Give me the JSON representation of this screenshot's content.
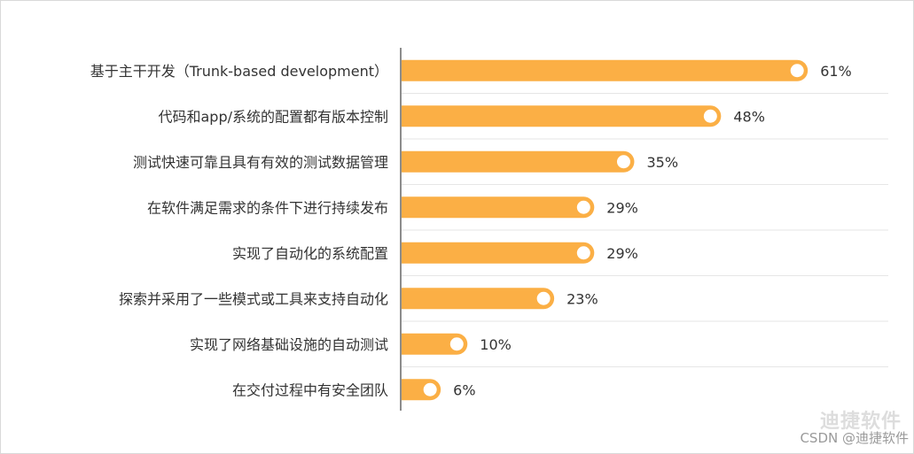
{
  "chart_data": {
    "type": "bar",
    "orientation": "horizontal",
    "categories": [
      "基于主干开发（Trunk-based development）",
      "代码和app/系统的配置都有版本控制",
      "测试快速可靠且具有有效的测试数据管理",
      "在软件满足需求的条件下进行持续发布",
      "实现了自动化的系统配置",
      "探索并采用了一些模式或工具来支持自动化",
      "实现了网络基础设施的自动测试",
      "在交付过程中有安全团队"
    ],
    "values": [
      61,
      48,
      35,
      29,
      29,
      23,
      10,
      6
    ],
    "value_labels": [
      "61%",
      "48%",
      "35%",
      "29%",
      "29%",
      "23%",
      "10%",
      "6%"
    ],
    "unit": "%",
    "xlim": [
      0,
      72
    ],
    "grid": false,
    "bar_color": "#FBAF45",
    "marker_color": "#ffffff"
  },
  "watermark": {
    "brand": "迪捷软件",
    "source": "CSDN @迪捷软件"
  }
}
